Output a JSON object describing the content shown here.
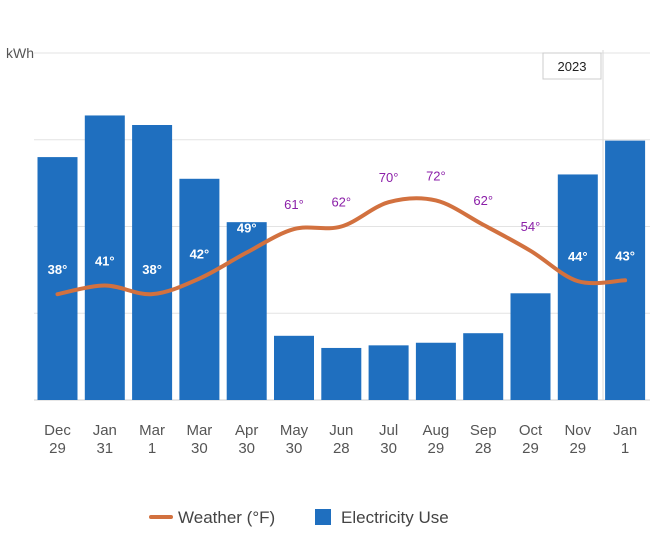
{
  "chart_data": {
    "type": "bar",
    "ylabel": "kWh",
    "year_marker": "2023",
    "ylim": [
      0,
      4
    ],
    "grid": true,
    "categories": [
      [
        "Dec",
        "29"
      ],
      [
        "Jan",
        "31"
      ],
      [
        "Mar",
        "1"
      ],
      [
        "Mar",
        "30"
      ],
      [
        "Apr",
        "30"
      ],
      [
        "May",
        "30"
      ],
      [
        "Jun",
        "28"
      ],
      [
        "Jul",
        "30"
      ],
      [
        "Aug",
        "29"
      ],
      [
        "Sep",
        "28"
      ],
      [
        "Oct",
        "29"
      ],
      [
        "Nov",
        "29"
      ],
      [
        "Jan",
        "1"
      ]
    ],
    "series": [
      {
        "name": "Electricity Use",
        "type": "bar",
        "color": "#1f6fbf",
        "values": [
          2.8,
          3.28,
          3.17,
          2.55,
          2.05,
          0.74,
          0.6,
          0.63,
          0.66,
          0.77,
          1.23,
          2.6,
          2.99
        ]
      },
      {
        "name": "Weather (°F)",
        "type": "line",
        "color": "#d2713f",
        "values": [
          1.22,
          1.32,
          1.22,
          1.4,
          1.7,
          1.97,
          2.0,
          2.28,
          2.3,
          2.02,
          1.72,
          1.37,
          1.38
        ],
        "labels": [
          "38°",
          "41°",
          "38°",
          "42°",
          "49°",
          "61°",
          "62°",
          "70°",
          "72°",
          "62°",
          "54°",
          "44°",
          "43°"
        ]
      }
    ],
    "legend_position": "bottom"
  }
}
